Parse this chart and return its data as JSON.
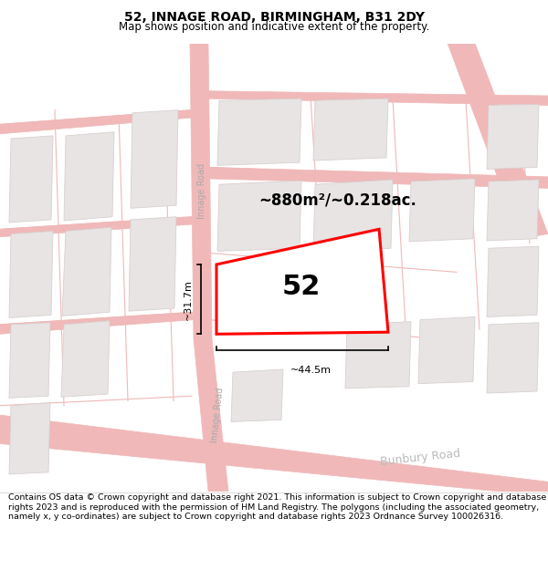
{
  "title": "52, INNAGE ROAD, BIRMINGHAM, B31 2DY",
  "subtitle": "Map shows position and indicative extent of the property.",
  "footer": "Contains OS data © Crown copyright and database right 2021. This information is subject to Crown copyright and database rights 2023 and is reproduced with the permission of HM Land Registry. The polygons (including the associated geometry, namely x, y co-ordinates) are subject to Crown copyright and database rights 2023 Ordnance Survey 100026316.",
  "map_bg": "#faf8f8",
  "road_line_color": "#f0b8b8",
  "road_line_lw": 0.8,
  "building_fill": "#e8e4e4",
  "building_outline": "#d8d0d0",
  "property_color": "#ff0000",
  "property_lw": 2.2,
  "label_52": "52",
  "area_label": "~880m²/~0.218ac.",
  "width_label": "~44.5m",
  "height_label": "~31.7m",
  "road_label_innage1": "Innage Road",
  "road_label_innage2": "Innage Road",
  "road_label_bunbury": "Bunbury Road",
  "title_fontsize": 10,
  "subtitle_fontsize": 8.5,
  "footer_fontsize": 6.8
}
